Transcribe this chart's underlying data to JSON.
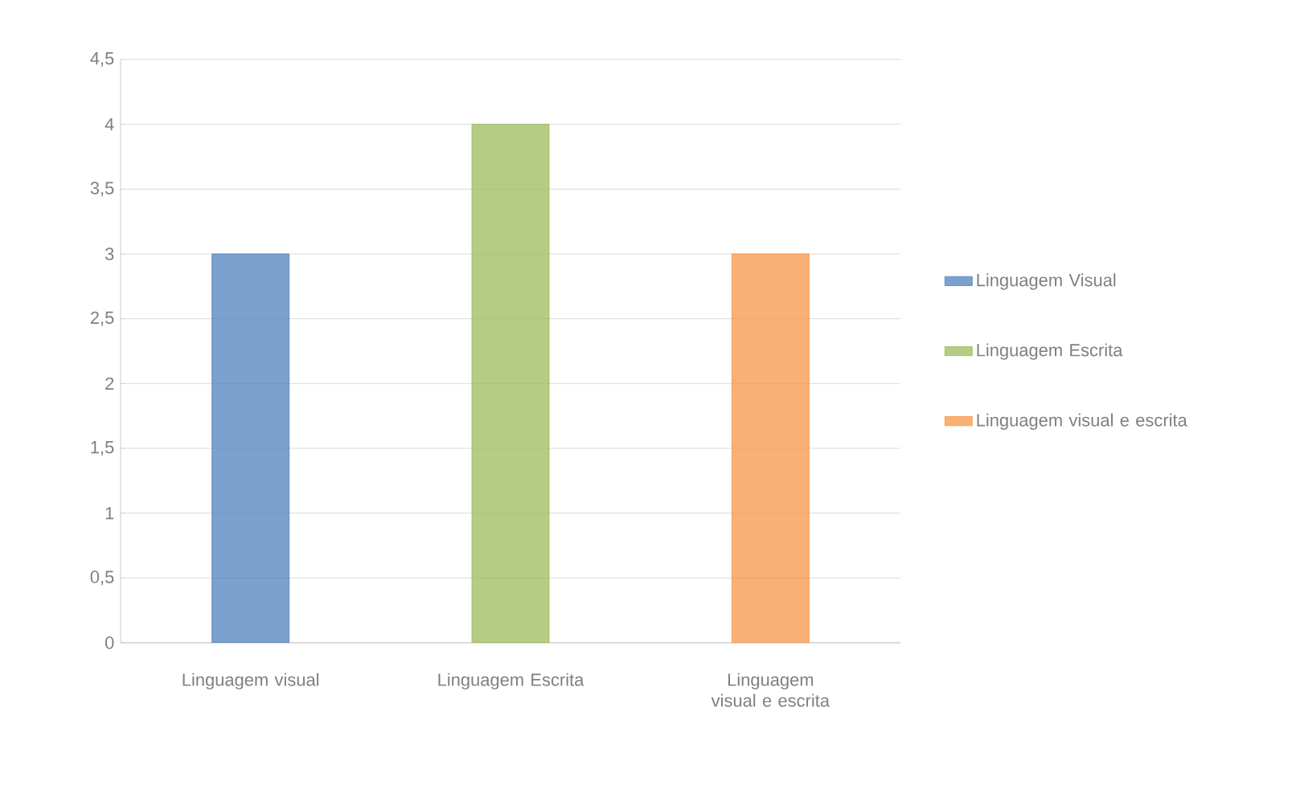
{
  "chart_data": {
    "type": "bar",
    "categories": [
      "Linguagem visual",
      "Linguagem Escrita",
      "Linguagem visual e escrita"
    ],
    "series": [
      {
        "name": "Linguagem Visual",
        "color": "#4f81bd",
        "values": [
          3,
          null,
          null
        ]
      },
      {
        "name": "Linguagem Escrita",
        "color": "#9bbb59",
        "values": [
          null,
          4,
          null
        ]
      },
      {
        "name": "Linguagem visual e escrita",
        "color": "#f79646",
        "values": [
          null,
          null,
          3
        ]
      }
    ],
    "ylim": [
      0,
      4.5
    ],
    "yticks": [
      0,
      {
        "value": 0.5,
        "label": "0,5"
      },
      1,
      {
        "value": 1.5,
        "label": "1,5"
      },
      2,
      {
        "value": 2.5,
        "label": "2,5"
      },
      3,
      {
        "value": 3.5,
        "label": "3,5"
      },
      4,
      {
        "value": 4.5,
        "label": "4,5"
      }
    ],
    "grid": "y",
    "legend": "right"
  }
}
